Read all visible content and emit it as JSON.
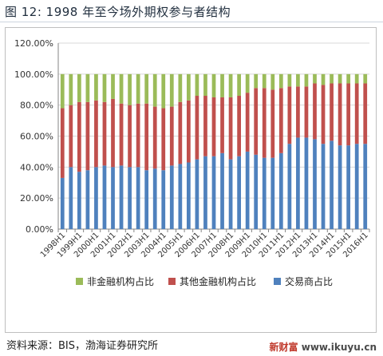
{
  "figure": {
    "title": "图 12:  1998 年至今场外期权参与者结构"
  },
  "source": "资料来源：BIS，渤海证券研究所",
  "watermark": {
    "brand": "新财富",
    "url": "www.ikuyu.cn"
  },
  "colors": {
    "green": "#9bbb59",
    "red": "#c0504d",
    "blue": "#4f81bd",
    "grid": "#d9d9d9",
    "axis": "#868686"
  },
  "chart_data": {
    "type": "bar",
    "stacked": true,
    "categories": [
      "1998H1",
      "1998H2",
      "1999H1",
      "1999H2",
      "2000H1",
      "2000H2",
      "2001H1",
      "2001H2",
      "2002H1",
      "2002H2",
      "2003H1",
      "2003H2",
      "2004H1",
      "2004H2",
      "2005H1",
      "2005H2",
      "2006H1",
      "2006H2",
      "2007H1",
      "2007H2",
      "2008H1",
      "2008H2",
      "2009H1",
      "2009H2",
      "2010H1",
      "2010H2",
      "2011H1",
      "2011H2",
      "2012H1",
      "2012H2",
      "2013H1",
      "2013H2",
      "2014H1",
      "2014H2",
      "2015H1",
      "2015H2",
      "2016H1"
    ],
    "x_tick_labels": [
      "1998H1",
      "1999H1",
      "2000H1",
      "2001H1",
      "2002H1",
      "2003H1",
      "2004H1",
      "2005H1",
      "2006H1",
      "2007H1",
      "2008H1",
      "2009H1",
      "2010H1",
      "2011H1",
      "2012H1",
      "2013H1",
      "2014H1",
      "2015H1",
      "2016H1"
    ],
    "ylim": [
      0,
      120
    ],
    "yticks": [
      "0.00%",
      "20.00%",
      "40.00%",
      "60.00%",
      "80.00%",
      "100.00%",
      "120.00%"
    ],
    "grid": true,
    "legend_position": "bottom",
    "series": [
      {
        "name": "交易商占比",
        "color": "#4f81bd",
        "values": [
          33,
          40,
          37,
          38,
          40,
          41,
          40,
          41,
          40,
          40,
          38,
          39,
          38,
          41,
          42,
          43,
          45,
          47,
          47,
          49,
          45,
          47,
          50,
          48,
          46,
          46,
          49,
          55,
          59,
          59,
          58,
          55,
          57,
          54,
          54,
          55,
          55
        ]
      },
      {
        "name": "其他金融机构占比",
        "color": "#c0504d",
        "values": [
          45,
          40,
          45,
          44,
          43,
          41,
          44,
          40,
          40,
          41,
          43,
          40,
          40,
          38,
          40,
          40,
          41,
          39,
          38,
          36,
          40,
          39,
          38,
          43,
          45,
          44,
          42,
          37,
          33,
          33,
          36,
          38,
          37,
          40,
          40,
          39,
          39
        ]
      },
      {
        "name": "非金融机构占比",
        "color": "#9bbb59",
        "values": [
          22,
          20,
          18,
          18,
          17,
          18,
          16,
          19,
          20,
          19,
          19,
          21,
          22,
          21,
          18,
          17,
          14,
          14,
          15,
          15,
          15,
          14,
          12,
          9,
          9,
          10,
          9,
          8,
          8,
          8,
          6,
          7,
          6,
          6,
          6,
          6,
          6
        ]
      }
    ]
  }
}
